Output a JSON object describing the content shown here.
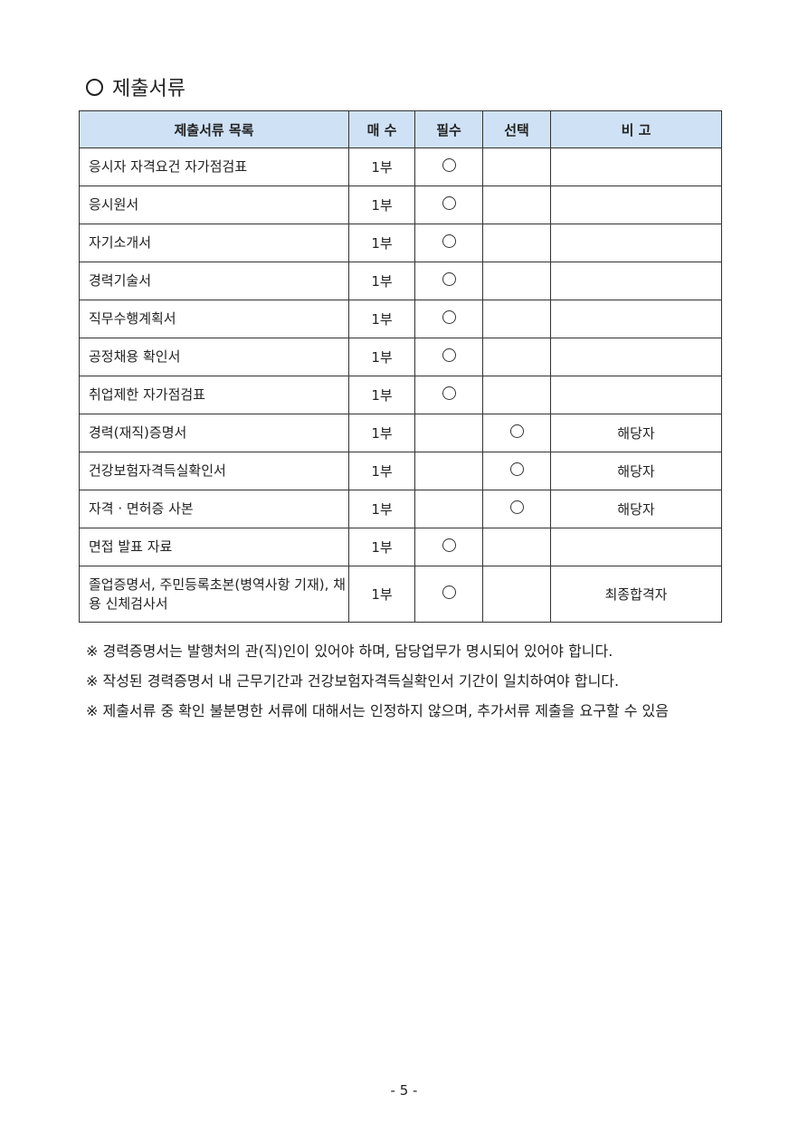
{
  "section_title": "제출서류",
  "table": {
    "headers": [
      "제출서류 목록",
      "매 수",
      "필수",
      "선택",
      "비 고"
    ],
    "rows": [
      {
        "name": "응시자 자격요건 자가점검표",
        "count": "1부",
        "required": true,
        "optional": false,
        "note": ""
      },
      {
        "name": "응시원서",
        "count": "1부",
        "required": true,
        "optional": false,
        "note": ""
      },
      {
        "name": "자기소개서",
        "count": "1부",
        "required": true,
        "optional": false,
        "note": ""
      },
      {
        "name": "경력기술서",
        "count": "1부",
        "required": true,
        "optional": false,
        "note": ""
      },
      {
        "name": "직무수행계획서",
        "count": "1부",
        "required": true,
        "optional": false,
        "note": ""
      },
      {
        "name": "공정채용 확인서",
        "count": "1부",
        "required": true,
        "optional": false,
        "note": ""
      },
      {
        "name": "취업제한 자가점검표",
        "count": "1부",
        "required": true,
        "optional": false,
        "note": ""
      },
      {
        "name": "경력(재직)증명서",
        "count": "1부",
        "required": false,
        "optional": true,
        "note": "해당자"
      },
      {
        "name": "건강보험자격득실확인서",
        "count": "1부",
        "required": false,
        "optional": true,
        "note": "해당자"
      },
      {
        "name": "자격 · 면허증 사본",
        "count": "1부",
        "required": false,
        "optional": true,
        "note": "해당자"
      },
      {
        "name": "면접 발표 자료",
        "count": "1부",
        "required": true,
        "optional": false,
        "note": ""
      },
      {
        "name": "졸업증명서, 주민등록초본(병역사항 기재), 채용 신체검사서",
        "count": "1부",
        "required": true,
        "optional": false,
        "note": "최종합격자"
      }
    ]
  },
  "notes": [
    "※ 경력증명서는 발행처의 관(직)인이 있어야 하며, 담당업무가 명시되어 있어야 합니다.",
    "※ 작성된 경력증명서 내 근무기간과 건강보험자격득실확인서 기간이 일치하여야 합니다.",
    "※ 제출서류 중 확인 불분명한 서류에 대해서는 인정하지 않으며, 추가서류 제출을 요구할 수 있음"
  ],
  "page_number": "- 5 -"
}
